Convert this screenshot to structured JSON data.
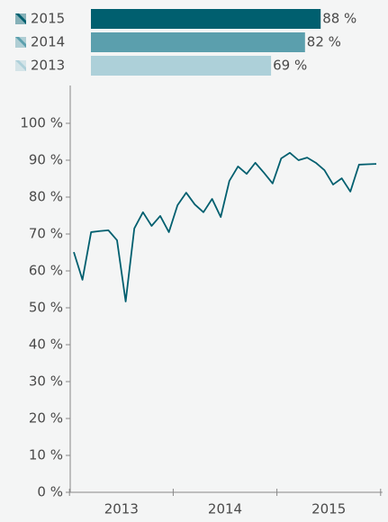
{
  "chart_data": [
    {
      "type": "hbar",
      "categories": [
        "2015",
        "2014",
        "2013"
      ],
      "values": [
        88,
        82,
        69
      ],
      "value_labels": [
        "88 %",
        "82 %",
        "69 %"
      ],
      "colors": [
        "#005f6f",
        "#5b9fad",
        "#add0d9"
      ],
      "xlim": [
        0,
        100
      ]
    },
    {
      "type": "line",
      "categories": [
        null,
        null,
        null,
        null,
        null,
        null,
        "2013",
        null,
        null,
        null,
        null,
        null,
        null,
        null,
        null,
        null,
        null,
        null,
        "2014",
        null,
        null,
        null,
        null,
        null,
        null,
        null,
        null,
        null,
        null,
        null,
        "2015",
        null,
        null,
        null,
        null,
        null
      ],
      "series": [
        {
          "color": "#005f6f",
          "values": [
            65.1,
            57.6,
            70.5,
            70.8,
            71,
            68.3,
            51.7,
            71.5,
            75.9,
            72.2,
            74.9,
            70.5,
            77.8,
            81.2,
            78,
            75.9,
            79.5,
            74.6,
            84.4,
            88.3,
            86.3,
            89.3,
            86.6,
            83.7,
            90.5,
            92,
            90,
            90.7,
            89.3,
            87.3,
            83.4,
            85.1,
            81.5,
            88.8,
            88.9,
            89
          ]
        }
      ],
      "ylim": [
        0,
        100
      ],
      "yticks": [
        {
          "value": 0,
          "label": "0 %"
        },
        {
          "value": 10,
          "label": "10 %"
        },
        {
          "value": 20,
          "label": "20 %"
        },
        {
          "value": 30,
          "label": "30 %"
        },
        {
          "value": 40,
          "label": "40 %"
        },
        {
          "value": 50,
          "label": "50 %"
        },
        {
          "value": 60,
          "label": "60 %"
        },
        {
          "value": 70,
          "label": "70 %"
        },
        {
          "value": 80,
          "label": "80 %"
        },
        {
          "value": 90,
          "label": "90 %"
        },
        {
          "value": 100,
          "label": "100 %"
        }
      ]
    }
  ]
}
